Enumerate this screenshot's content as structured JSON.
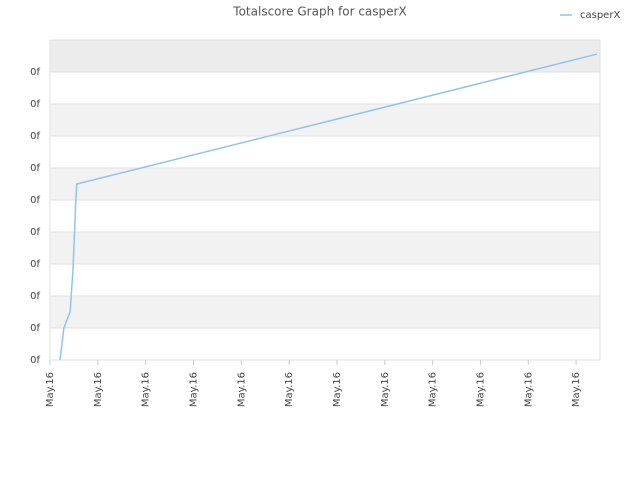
{
  "chart_data": {
    "type": "line",
    "title": "Totalscore Graph for casperX",
    "x": [
      0.21,
      0.29,
      0.42,
      0.48,
      0.54,
      0.56,
      11.44
    ],
    "series": [
      {
        "name": "casperX",
        "color": "#90c4ee",
        "values": [
          0,
          1,
          1.5,
          2.8,
          5,
          5.5,
          9.56
        ]
      }
    ],
    "xlim": [
      0,
      11.5
    ],
    "xticks": [
      {
        "value": 0,
        "label": "May.16"
      },
      {
        "value": 1,
        "label": "May.16"
      },
      {
        "value": 2,
        "label": "May.16"
      },
      {
        "value": 3,
        "label": "May.16"
      },
      {
        "value": 4,
        "label": "May.16"
      },
      {
        "value": 5,
        "label": "May.16"
      },
      {
        "value": 6,
        "label": "May.16"
      },
      {
        "value": 7,
        "label": "May.16"
      },
      {
        "value": 8,
        "label": "May.16"
      },
      {
        "value": 9,
        "label": "May.16"
      },
      {
        "value": 10,
        "label": "May.16"
      },
      {
        "value": 11,
        "label": "May.16"
      }
    ],
    "ylim": [
      0,
      10
    ],
    "yticks": [
      {
        "value": 0,
        "label": "0f"
      },
      {
        "value": 1,
        "label": "0f"
      },
      {
        "value": 2,
        "label": "0f"
      },
      {
        "value": 3,
        "label": "0f"
      },
      {
        "value": 4,
        "label": "0f"
      },
      {
        "value": 5,
        "label": "0f"
      },
      {
        "value": 6,
        "label": "0f"
      },
      {
        "value": 7,
        "label": "0f"
      },
      {
        "value": 8,
        "label": "0f"
      },
      {
        "value": 9,
        "label": "0f"
      }
    ],
    "grid": true,
    "legend": "top-right"
  }
}
